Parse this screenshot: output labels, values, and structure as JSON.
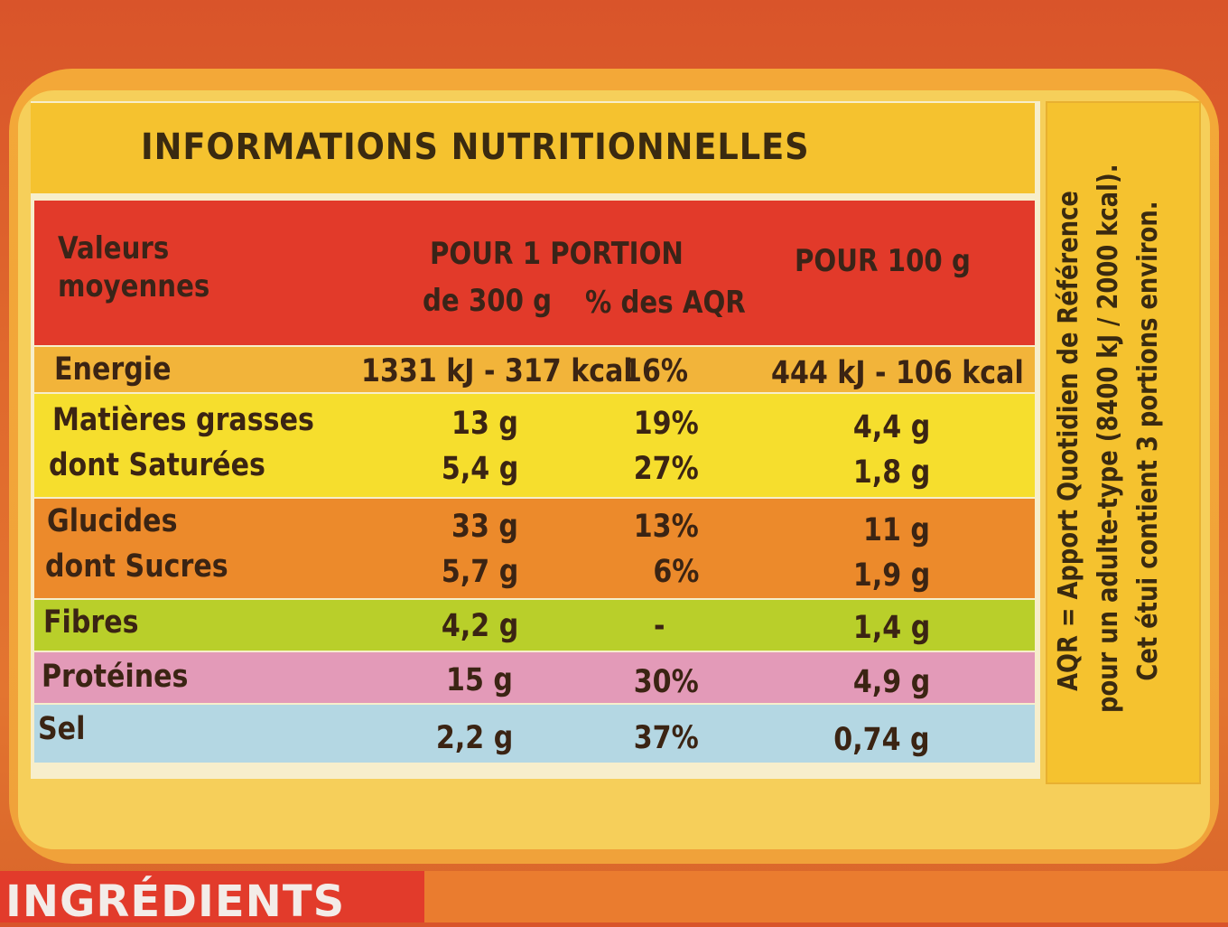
{
  "title": "INFORMATIONS NUTRITIONNELLES",
  "header": {
    "col1_line1": "Valeurs",
    "col1_line2": "moyennes",
    "portion_label": "POUR 1 PORTION",
    "portion_size": "de 300 g",
    "aqr_label": "% des AQR",
    "per100_label": "POUR 100 g"
  },
  "rows": [
    {
      "label": "Energie",
      "portion": "1331 kJ - 317 kcal",
      "aqr": "16%",
      "per100": "444 kJ - 106 kcal"
    },
    {
      "label": "Matières grasses",
      "portion": "13 g",
      "aqr": "19%",
      "per100": "4,4 g"
    },
    {
      "label": "dont Saturées",
      "portion": "5,4 g",
      "aqr": "27%",
      "per100": "1,8 g"
    },
    {
      "label": "Glucides",
      "portion": "33 g",
      "aqr": "13%",
      "per100": "11 g"
    },
    {
      "label": "dont Sucres",
      "portion": "5,7 g",
      "aqr": "6%",
      "per100": "1,9 g"
    },
    {
      "label": "Fibres",
      "portion": "4,2 g",
      "aqr": "-",
      "per100": "1,4 g"
    },
    {
      "label": "Protéines",
      "portion": "15 g",
      "aqr": "30%",
      "per100": "4,9 g"
    },
    {
      "label": "Sel",
      "portion": "2,2 g",
      "aqr": "37%",
      "per100": "0,74 g"
    }
  ],
  "side_note": {
    "line1": "AQR = Apport Quotidien de Référence",
    "line2": "pour un adulte-type (8400 kJ / 2000 kcal).",
    "line3": "Cet étui contient 3 portions environ."
  },
  "bottom_label": "INGRÉDIENTS",
  "colors": {
    "header_red": "#e23a2a",
    "energie": "#f2b43a",
    "fats": "#f6de2d",
    "carbs": "#ec8a2b",
    "fibres": "#b9cf2a",
    "proteins": "#e39ab8",
    "salt": "#b4d7e3"
  }
}
